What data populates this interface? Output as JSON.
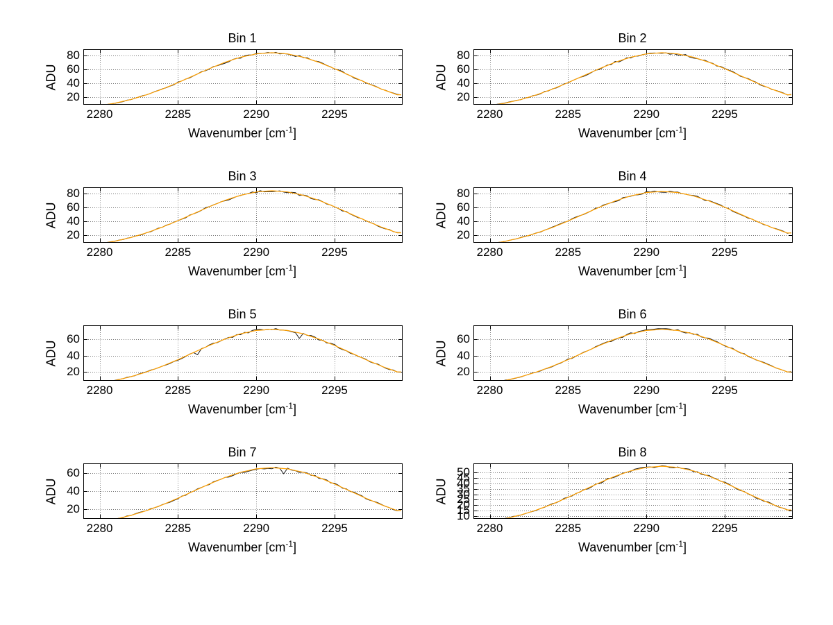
{
  "figure": {
    "background": "#ffffff"
  },
  "labels": {
    "ylabel": "ADU",
    "xlabel_main": "Wavenumber [cm",
    "xlabel_sup": "-1",
    "xlabel_close": "]"
  },
  "colors": {
    "data_line": "#1a1a1a",
    "fit_line": "#ffa000",
    "grid": "#777777",
    "axis": "#000000"
  },
  "chart_data": [
    {
      "type": "line",
      "title": "Bin 1",
      "xlabel": "Wavenumber [cm^-1]",
      "ylabel": "ADU",
      "xlim": [
        2279,
        2299.3
      ],
      "ylim": [
        10,
        88
      ],
      "xticks": [
        2280,
        2285,
        2290,
        2295
      ],
      "yticks": [
        20,
        40,
        60,
        80
      ],
      "grid": "dotted",
      "series": [
        {
          "name": "measured-spectrum",
          "color": "#1a1a1a",
          "style": "noisy"
        },
        {
          "name": "fit",
          "color": "#ffa000",
          "style": "smooth"
        }
      ],
      "x": [
        2279,
        2280,
        2281,
        2282,
        2283,
        2284,
        2285,
        2286,
        2287,
        2288,
        2289,
        2290,
        2291,
        2292,
        2293,
        2294,
        2295,
        2296,
        2297,
        2298,
        2299
      ],
      "y": [
        4.7,
        7.5,
        11.4,
        16.6,
        23.4,
        31.5,
        40.9,
        50.9,
        61.0,
        70.2,
        77.5,
        82.3,
        84.0,
        82.3,
        77.5,
        70.2,
        61.0,
        50.9,
        40.9,
        31.5,
        23.4
      ]
    },
    {
      "type": "line",
      "title": "Bin 2",
      "xlabel": "Wavenumber [cm^-1]",
      "ylabel": "ADU",
      "xlim": [
        2279,
        2299.3
      ],
      "ylim": [
        10,
        88
      ],
      "xticks": [
        2280,
        2285,
        2290,
        2295
      ],
      "yticks": [
        20,
        40,
        60,
        80
      ],
      "grid": "dotted",
      "series": [
        {
          "name": "measured-spectrum",
          "color": "#1a1a1a",
          "style": "noisy"
        },
        {
          "name": "fit",
          "color": "#ffa000",
          "style": "smooth"
        }
      ],
      "x": [
        2279,
        2280,
        2281,
        2282,
        2283,
        2284,
        2285,
        2286,
        2287,
        2288,
        2289,
        2290,
        2291,
        2292,
        2293,
        2294,
        2295,
        2296,
        2297,
        2298,
        2299
      ],
      "y": [
        4.7,
        7.5,
        11.4,
        16.6,
        23.4,
        31.5,
        40.9,
        50.9,
        61.0,
        70.2,
        77.5,
        82.3,
        84.0,
        82.3,
        77.5,
        70.2,
        61.0,
        50.9,
        40.9,
        31.5,
        23.4
      ]
    },
    {
      "type": "line",
      "title": "Bin 3",
      "xlabel": "Wavenumber [cm^-1]",
      "ylabel": "ADU",
      "xlim": [
        2279,
        2299.3
      ],
      "ylim": [
        10,
        88
      ],
      "xticks": [
        2280,
        2285,
        2290,
        2295
      ],
      "yticks": [
        20,
        40,
        60,
        80
      ],
      "grid": "dotted",
      "series": [
        {
          "name": "measured-spectrum",
          "color": "#1a1a1a",
          "style": "noisy"
        },
        {
          "name": "fit",
          "color": "#ffa000",
          "style": "smooth"
        }
      ],
      "x": [
        2279,
        2280,
        2281,
        2282,
        2283,
        2284,
        2285,
        2286,
        2287,
        2288,
        2289,
        2290,
        2291,
        2292,
        2293,
        2294,
        2295,
        2296,
        2297,
        2298,
        2299
      ],
      "y": [
        4.7,
        7.5,
        11.4,
        16.6,
        23.4,
        31.5,
        40.9,
        50.9,
        61.0,
        70.2,
        77.5,
        82.3,
        84.0,
        82.3,
        77.5,
        70.2,
        61.0,
        50.9,
        40.9,
        31.5,
        23.4
      ]
    },
    {
      "type": "line",
      "title": "Bin 4",
      "xlabel": "Wavenumber [cm^-1]",
      "ylabel": "ADU",
      "xlim": [
        2279,
        2299.3
      ],
      "ylim": [
        10,
        88
      ],
      "xticks": [
        2280,
        2285,
        2290,
        2295
      ],
      "yticks": [
        20,
        40,
        60,
        80
      ],
      "grid": "dotted",
      "series": [
        {
          "name": "measured-spectrum",
          "color": "#1a1a1a",
          "style": "noisy"
        },
        {
          "name": "fit",
          "color": "#ffa000",
          "style": "smooth"
        }
      ],
      "x": [
        2279,
        2280,
        2281,
        2282,
        2283,
        2284,
        2285,
        2286,
        2287,
        2288,
        2289,
        2290,
        2291,
        2292,
        2293,
        2294,
        2295,
        2296,
        2297,
        2298,
        2299
      ],
      "y": [
        4.6,
        7.4,
        11.2,
        16.4,
        23.1,
        31.1,
        40.4,
        50.3,
        60.3,
        69.3,
        76.6,
        81.4,
        83.0,
        81.4,
        76.6,
        69.3,
        60.3,
        50.3,
        40.4,
        31.1,
        23.1
      ]
    },
    {
      "type": "line",
      "title": "Bin 5",
      "xlabel": "Wavenumber [cm^-1]",
      "ylabel": "ADU",
      "xlim": [
        2279,
        2299.3
      ],
      "ylim": [
        10,
        76
      ],
      "xticks": [
        2280,
        2285,
        2290,
        2295
      ],
      "yticks": [
        20,
        40,
        60
      ],
      "grid": "dotted",
      "series": [
        {
          "name": "measured-spectrum",
          "color": "#1a1a1a",
          "style": "noisy"
        },
        {
          "name": "fit",
          "color": "#ffa000",
          "style": "smooth"
        }
      ],
      "x": [
        2279,
        2280,
        2281,
        2282,
        2283,
        2284,
        2285,
        2286,
        2287,
        2288,
        2289,
        2290,
        2291,
        2292,
        2293,
        2294,
        2295,
        2296,
        2297,
        2298,
        2299
      ],
      "y": [
        4.0,
        6.4,
        9.7,
        14.2,
        20.0,
        27.0,
        35.0,
        43.7,
        52.3,
        60.1,
        66.5,
        70.6,
        72.0,
        70.6,
        66.5,
        60.1,
        52.3,
        43.7,
        35.0,
        27.0,
        20.0
      ]
    },
    {
      "type": "line",
      "title": "Bin 6",
      "xlabel": "Wavenumber [cm^-1]",
      "ylabel": "ADU",
      "xlim": [
        2279,
        2299.3
      ],
      "ylim": [
        10,
        76
      ],
      "xticks": [
        2280,
        2285,
        2290,
        2295
      ],
      "yticks": [
        20,
        40,
        60
      ],
      "grid": "dotted",
      "series": [
        {
          "name": "measured-spectrum",
          "color": "#1a1a1a",
          "style": "noisy"
        },
        {
          "name": "fit",
          "color": "#ffa000",
          "style": "smooth"
        }
      ],
      "x": [
        2279,
        2280,
        2281,
        2282,
        2283,
        2284,
        2285,
        2286,
        2287,
        2288,
        2289,
        2290,
        2291,
        2292,
        2293,
        2294,
        2295,
        2296,
        2297,
        2298,
        2299
      ],
      "y": [
        4.0,
        6.4,
        9.7,
        14.2,
        20.0,
        27.0,
        35.0,
        43.7,
        52.3,
        60.1,
        66.5,
        70.6,
        72.0,
        70.6,
        66.5,
        60.1,
        52.3,
        43.7,
        35.0,
        27.0,
        20.0
      ]
    },
    {
      "type": "line",
      "title": "Bin 7",
      "xlabel": "Wavenumber [cm^-1]",
      "ylabel": "ADU",
      "xlim": [
        2279,
        2299.3
      ],
      "ylim": [
        10,
        70
      ],
      "xticks": [
        2280,
        2285,
        2290,
        2295
      ],
      "yticks": [
        20,
        40,
        60
      ],
      "grid": "dotted",
      "series": [
        {
          "name": "measured-spectrum",
          "color": "#1a1a1a",
          "style": "noisy"
        },
        {
          "name": "fit",
          "color": "#ffa000",
          "style": "smooth"
        }
      ],
      "x": [
        2279,
        2280,
        2281,
        2282,
        2283,
        2284,
        2285,
        2286,
        2287,
        2288,
        2289,
        2290,
        2291,
        2292,
        2293,
        2294,
        2295,
        2296,
        2297,
        2298,
        2299
      ],
      "y": [
        3.7,
        5.9,
        8.9,
        13.1,
        18.4,
        24.8,
        32.1,
        40.0,
        47.9,
        55.1,
        60.9,
        64.7,
        66.0,
        64.7,
        60.9,
        55.1,
        47.9,
        40.0,
        32.1,
        24.8,
        18.4
      ]
    },
    {
      "type": "line",
      "title": "Bin 8",
      "xlabel": "Wavenumber [cm^-1]",
      "ylabel": "ADU",
      "xlim": [
        2279,
        2299.3
      ],
      "ylim": [
        8,
        58
      ],
      "xticks": [
        2280,
        2285,
        2290,
        2295
      ],
      "yticks": [
        10,
        15,
        20,
        25,
        30,
        35,
        40,
        45,
        50
      ],
      "grid": "dotted",
      "series": [
        {
          "name": "measured-spectrum",
          "color": "#1a1a1a",
          "style": "noisy"
        },
        {
          "name": "fit",
          "color": "#ffa000",
          "style": "smooth"
        }
      ],
      "x": [
        2279,
        2280,
        2281,
        2282,
        2283,
        2284,
        2285,
        2286,
        2287,
        2288,
        2289,
        2290,
        2291,
        2292,
        2293,
        2294,
        2295,
        2296,
        2297,
        2298,
        2299
      ],
      "y": [
        3.1,
        5.0,
        7.6,
        11.1,
        15.6,
        21.0,
        27.3,
        34.0,
        40.7,
        46.8,
        51.7,
        54.9,
        56.0,
        54.9,
        51.7,
        46.8,
        40.7,
        34.0,
        27.3,
        21.0,
        15.6
      ]
    }
  ]
}
